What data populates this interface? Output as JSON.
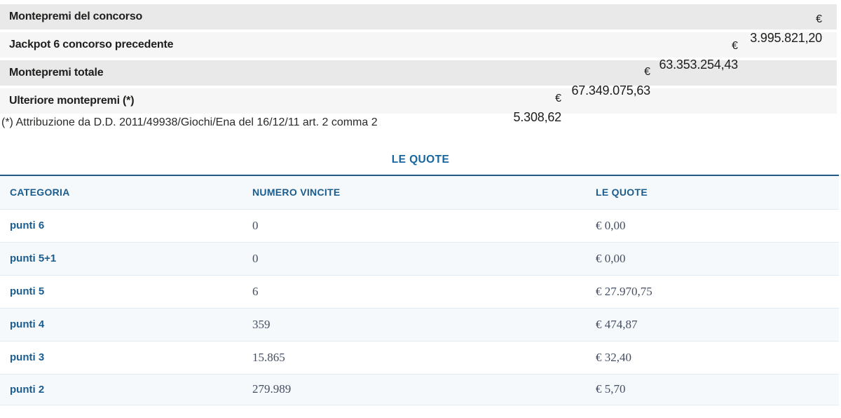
{
  "montepremi": {
    "rows": [
      {
        "label": "Montepremi del concorso",
        "currency": "€",
        "amount": "3.995.821,20"
      },
      {
        "label": "Jackpot 6 concorso precedente",
        "currency": "€",
        "amount": "63.353.254,43"
      },
      {
        "label": "Montepremi totale",
        "currency": "€",
        "amount": "67.349.075,63"
      },
      {
        "label": "Ulteriore montepremi (*)",
        "currency": "€",
        "amount": "5.308,62"
      }
    ],
    "footnote": "(*) Attribuzione da D.D. 2011/49938/Giochi/Ena del 16/12/11 art. 2 comma 2"
  },
  "quote": {
    "title": "LE QUOTE",
    "columns": [
      "CATEGORIA",
      "NUMERO VINCITE",
      "LE QUOTE"
    ],
    "rows": [
      {
        "categoria": "punti 6",
        "vincite": "0",
        "quota": "€ 0,00"
      },
      {
        "categoria": "punti 5+1",
        "vincite": "0",
        "quota": "€ 0,00"
      },
      {
        "categoria": "punti 5",
        "vincite": "6",
        "quota": "€ 27.970,75"
      },
      {
        "categoria": "punti 4",
        "vincite": "359",
        "quota": "€ 474,87"
      },
      {
        "categoria": "punti 3",
        "vincite": "15.865",
        "quota": "€ 32,40"
      },
      {
        "categoria": "punti 2",
        "vincite": "279.989",
        "quota": "€ 5,70"
      }
    ]
  },
  "colors": {
    "accent_blue": "#1b5c8e",
    "title_blue": "#1566a0",
    "table_border_blue": "#1f5a88",
    "row_alt_blue": "#f6f9fc",
    "band_gray": "#e9e9e9",
    "band_light": "#f6f6f6",
    "figure_text": "#454f62"
  }
}
